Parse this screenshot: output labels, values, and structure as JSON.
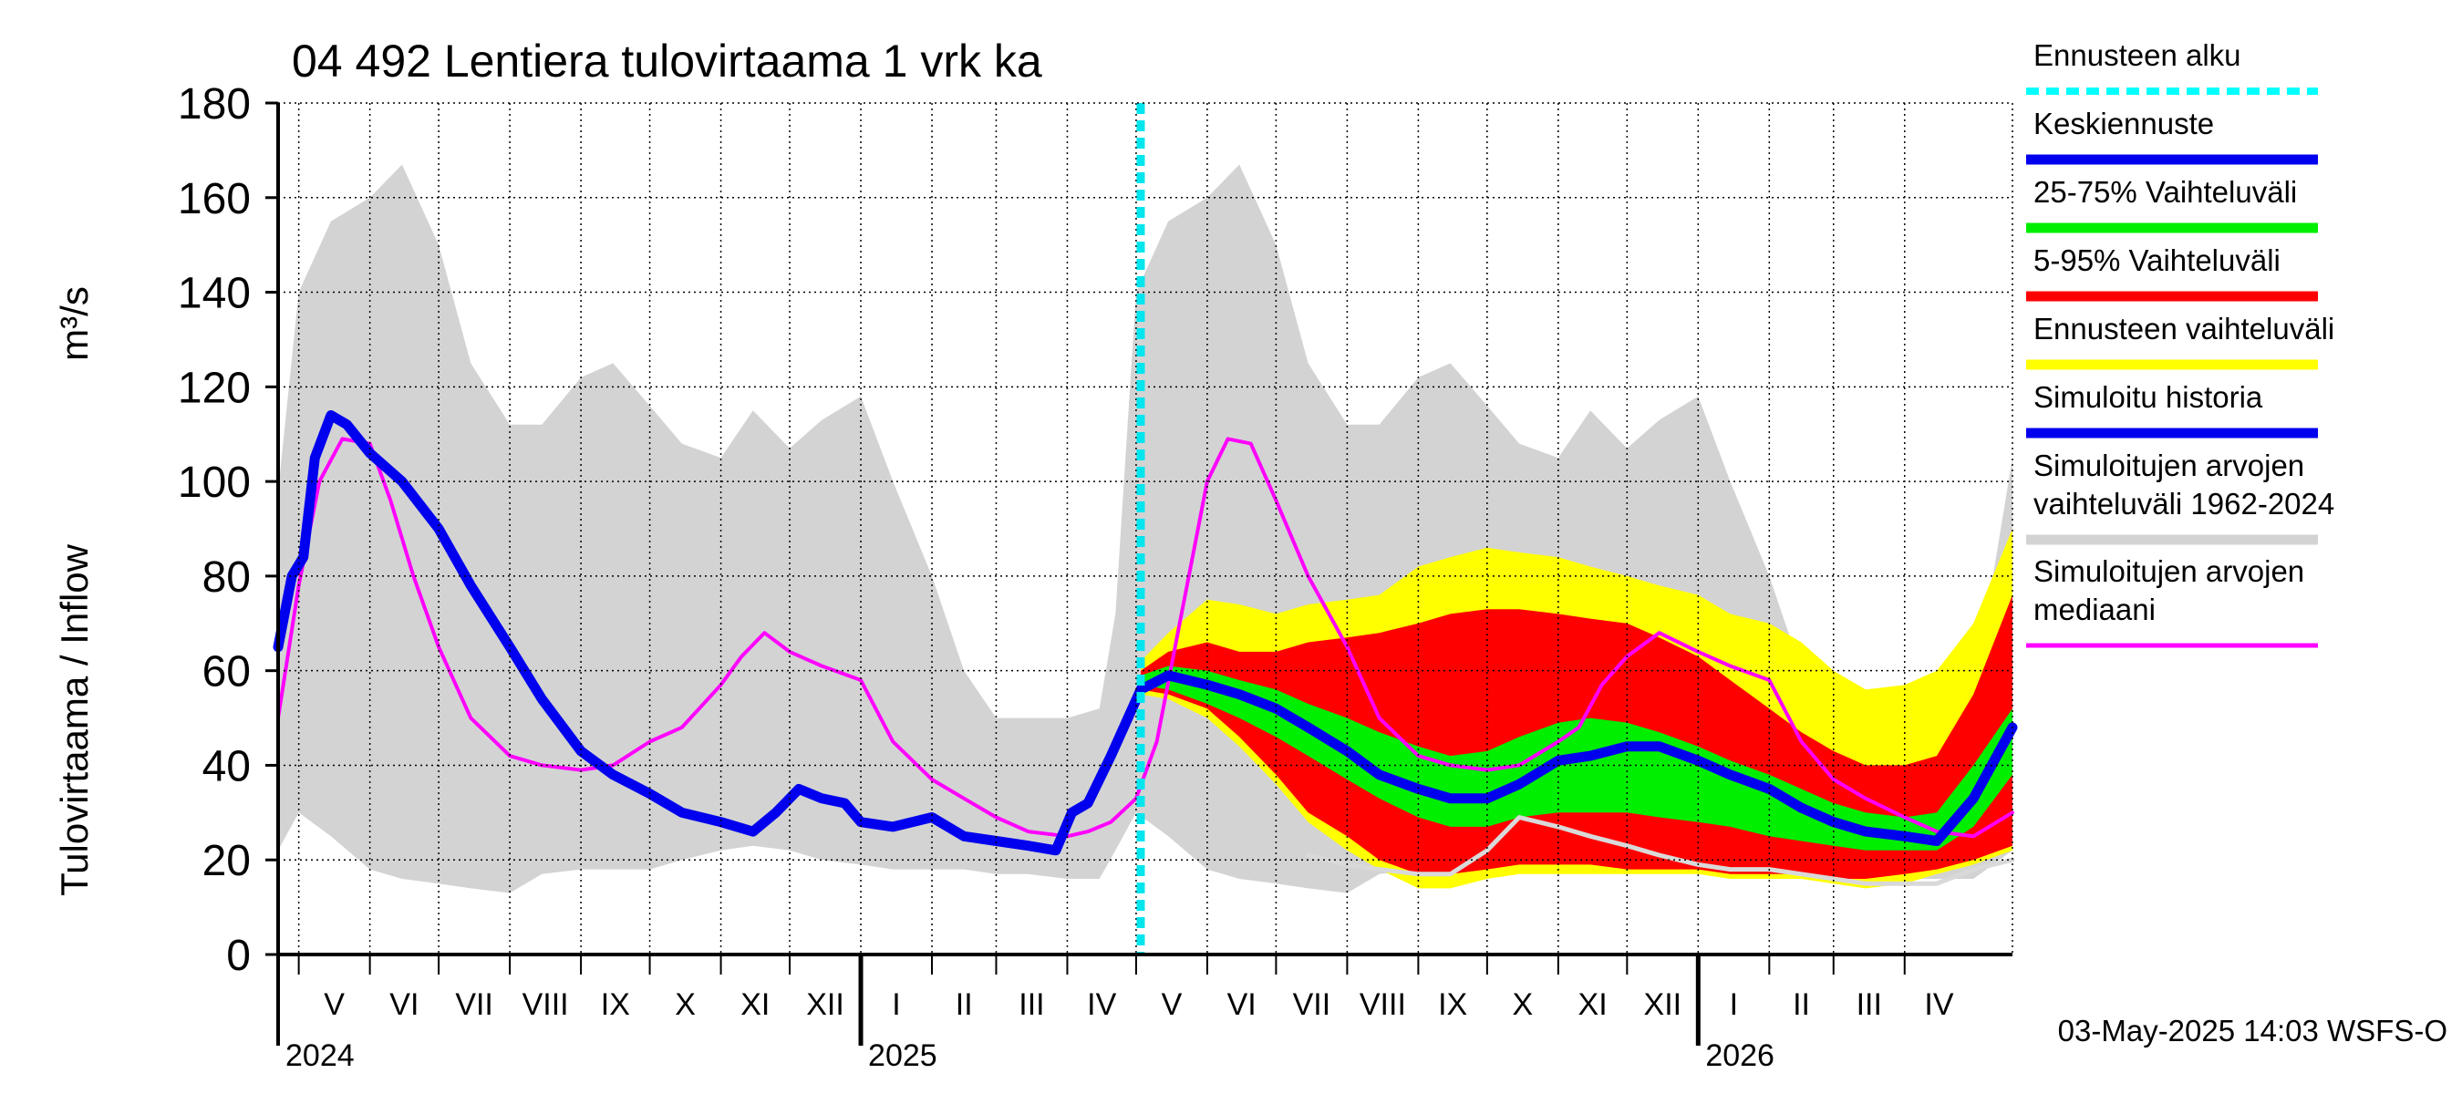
{
  "chart_data": {
    "type": "area",
    "title": "04 492 Lentiera tulovirtaama 1 vrk ka",
    "ylabel": "Tulovirtaama / Inflow",
    "yunit": "m³/s",
    "ylim": [
      0,
      180
    ],
    "yticks": [
      0,
      20,
      40,
      60,
      80,
      100,
      120,
      140,
      160,
      180
    ],
    "grid": true,
    "legend_position": "right",
    "xlim": [
      "2024-04-22",
      "2026-05-18"
    ],
    "forecast_start": "2025-05-03",
    "months": [
      {
        "label": "V",
        "start": "2024-05-01",
        "end": "2024-06-01"
      },
      {
        "label": "VI",
        "start": "2024-06-01",
        "end": "2024-07-01"
      },
      {
        "label": "VII",
        "start": "2024-07-01",
        "end": "2024-08-01"
      },
      {
        "label": "VIII",
        "start": "2024-08-01",
        "end": "2024-09-01"
      },
      {
        "label": "IX",
        "start": "2024-09-01",
        "end": "2024-10-01"
      },
      {
        "label": "X",
        "start": "2024-10-01",
        "end": "2024-11-01"
      },
      {
        "label": "XI",
        "start": "2024-11-01",
        "end": "2024-12-01"
      },
      {
        "label": "XII",
        "start": "2024-12-01",
        "end": "2025-01-01"
      },
      {
        "label": "I",
        "start": "2025-01-01",
        "end": "2025-02-01"
      },
      {
        "label": "II",
        "start": "2025-02-01",
        "end": "2025-03-01"
      },
      {
        "label": "III",
        "start": "2025-03-01",
        "end": "2025-04-01"
      },
      {
        "label": "IV",
        "start": "2025-04-01",
        "end": "2025-05-01"
      },
      {
        "label": "V",
        "start": "2025-05-01",
        "end": "2025-06-01"
      },
      {
        "label": "VI",
        "start": "2025-06-01",
        "end": "2025-07-01"
      },
      {
        "label": "VII",
        "start": "2025-07-01",
        "end": "2025-08-01"
      },
      {
        "label": "VIII",
        "start": "2025-08-01",
        "end": "2025-09-01"
      },
      {
        "label": "IX",
        "start": "2025-09-01",
        "end": "2025-10-01"
      },
      {
        "label": "X",
        "start": "2025-10-01",
        "end": "2025-11-01"
      },
      {
        "label": "XI",
        "start": "2025-11-01",
        "end": "2025-12-01"
      },
      {
        "label": "XII",
        "start": "2025-12-01",
        "end": "2026-01-01"
      },
      {
        "label": "I",
        "start": "2026-01-01",
        "end": "2026-02-01"
      },
      {
        "label": "II",
        "start": "2026-02-01",
        "end": "2026-03-01"
      },
      {
        "label": "III",
        "start": "2026-03-01",
        "end": "2026-04-01"
      },
      {
        "label": "IV",
        "start": "2026-04-01",
        "end": "2026-05-01"
      }
    ],
    "years": [
      {
        "label": "2024",
        "date": "2024-04-22"
      },
      {
        "label": "2025",
        "date": "2025-01-01"
      },
      {
        "label": "2026",
        "date": "2026-01-01"
      }
    ],
    "series": [
      {
        "name": "Simuloitujen arvojen vaihteluväli 1962-2024",
        "kind": "band",
        "color": "#d3d3d3",
        "x": [
          "2024-04-22",
          "2024-05-01",
          "2024-05-15",
          "2024-06-01",
          "2024-06-15",
          "2024-07-01",
          "2024-07-15",
          "2024-08-01",
          "2024-08-15",
          "2024-09-01",
          "2024-09-15",
          "2024-10-01",
          "2024-10-15",
          "2024-11-01",
          "2024-11-15",
          "2024-12-01",
          "2024-12-15",
          "2025-01-01",
          "2025-01-15",
          "2025-02-01",
          "2025-02-15",
          "2025-03-01",
          "2025-03-15",
          "2025-04-01",
          "2025-04-15",
          "2025-04-22",
          "2025-05-01",
          "2025-05-15",
          "2025-06-01",
          "2025-06-15",
          "2025-07-01",
          "2025-07-15",
          "2025-08-01",
          "2025-08-15",
          "2025-09-01",
          "2025-09-15",
          "2025-10-01",
          "2025-10-15",
          "2025-11-01",
          "2025-11-15",
          "2025-12-01",
          "2025-12-15",
          "2026-01-01",
          "2026-01-15",
          "2026-02-01",
          "2026-02-15",
          "2026-03-01",
          "2026-03-15",
          "2026-04-01",
          "2026-04-15",
          "2026-05-01",
          "2026-05-18"
        ],
        "lower": [
          22,
          30,
          25,
          18,
          16,
          15,
          14,
          13,
          17,
          18,
          18,
          18,
          20,
          22,
          23,
          22,
          20,
          19,
          18,
          18,
          18,
          17,
          17,
          16,
          16,
          22,
          30,
          25,
          18,
          16,
          15,
          14,
          13,
          17,
          18,
          18,
          18,
          20,
          22,
          23,
          22,
          20,
          19,
          18,
          18,
          18,
          17,
          17,
          16,
          16,
          16,
          22
        ],
        "upper": [
          98,
          140,
          155,
          160,
          167,
          150,
          125,
          112,
          112,
          122,
          125,
          116,
          108,
          105,
          115,
          107,
          113,
          118,
          100,
          80,
          60,
          50,
          50,
          50,
          52,
          72,
          140,
          155,
          160,
          167,
          150,
          125,
          112,
          112,
          122,
          125,
          116,
          108,
          105,
          115,
          107,
          113,
          118,
          100,
          80,
          60,
          50,
          50,
          50,
          52,
          55,
          105
        ]
      },
      {
        "name": "Ennusteen vaihteluväli",
        "kind": "band",
        "color": "#ffff00",
        "x": [
          "2025-05-03",
          "2025-05-15",
          "2025-06-01",
          "2025-06-15",
          "2025-07-01",
          "2025-07-15",
          "2025-08-01",
          "2025-08-15",
          "2025-09-01",
          "2025-09-15",
          "2025-10-01",
          "2025-10-15",
          "2025-11-01",
          "2025-11-15",
          "2025-12-01",
          "2025-12-15",
          "2026-01-01",
          "2026-01-15",
          "2026-02-01",
          "2026-02-15",
          "2026-03-01",
          "2026-03-15",
          "2026-04-01",
          "2026-04-15",
          "2026-05-01",
          "2026-05-18"
        ],
        "lower": [
          55,
          54,
          50,
          44,
          36,
          28,
          22,
          18,
          14,
          14,
          16,
          17,
          17,
          17,
          17,
          17,
          17,
          16,
          16,
          16,
          15,
          14,
          15,
          17,
          19,
          22
        ],
        "upper": [
          62,
          68,
          75,
          74,
          72,
          74,
          75,
          76,
          82,
          84,
          86,
          85,
          84,
          82,
          80,
          78,
          76,
          72,
          70,
          66,
          60,
          56,
          57,
          60,
          70,
          90
        ]
      },
      {
        "name": "5-95% Vaihteluväli",
        "kind": "band",
        "color": "#ff0000",
        "x": [
          "2025-05-03",
          "2025-05-15",
          "2025-06-01",
          "2025-06-15",
          "2025-07-01",
          "2025-07-15",
          "2025-08-01",
          "2025-08-15",
          "2025-09-01",
          "2025-09-15",
          "2025-10-01",
          "2025-10-15",
          "2025-11-01",
          "2025-11-15",
          "2025-12-01",
          "2025-12-15",
          "2026-01-01",
          "2026-01-15",
          "2026-02-01",
          "2026-02-15",
          "2026-03-01",
          "2026-03-15",
          "2026-04-01",
          "2026-04-15",
          "2026-05-01",
          "2026-05-18"
        ],
        "lower": [
          56,
          55,
          52,
          46,
          38,
          30,
          25,
          20,
          17,
          17,
          18,
          19,
          19,
          19,
          18,
          18,
          18,
          17,
          17,
          17,
          16,
          16,
          17,
          18,
          20,
          23
        ],
        "upper": [
          60,
          64,
          66,
          64,
          64,
          66,
          67,
          68,
          70,
          72,
          73,
          73,
          72,
          71,
          70,
          67,
          63,
          58,
          52,
          47,
          43,
          40,
          40,
          42,
          55,
          76
        ]
      },
      {
        "name": "25-75% Vaihteluväli",
        "kind": "band",
        "color": "#00ee00",
        "x": [
          "2025-05-03",
          "2025-05-15",
          "2025-06-01",
          "2025-06-15",
          "2025-07-01",
          "2025-07-15",
          "2025-08-01",
          "2025-08-15",
          "2025-09-01",
          "2025-09-15",
          "2025-10-01",
          "2025-10-15",
          "2025-11-01",
          "2025-11-15",
          "2025-12-01",
          "2025-12-15",
          "2026-01-01",
          "2026-01-15",
          "2026-02-01",
          "2026-02-15",
          "2026-03-01",
          "2026-03-15",
          "2026-04-01",
          "2026-04-15",
          "2026-05-01",
          "2026-05-18"
        ],
        "lower": [
          57,
          56,
          53,
          50,
          46,
          42,
          37,
          33,
          29,
          27,
          27,
          29,
          30,
          30,
          30,
          29,
          28,
          27,
          25,
          24,
          23,
          22,
          22,
          22,
          27,
          38
        ],
        "upper": [
          59,
          61,
          60,
          58,
          56,
          53,
          50,
          47,
          44,
          42,
          43,
          46,
          49,
          50,
          49,
          47,
          44,
          41,
          38,
          35,
          32,
          30,
          29,
          30,
          40,
          52
        ]
      },
      {
        "name": "Simuloitujen arvojen mediaani",
        "kind": "line",
        "color": "#ff00ff",
        "x": [
          "2024-04-22",
          "2024-05-01",
          "2024-05-10",
          "2024-05-20",
          "2024-06-01",
          "2024-06-10",
          "2024-06-20",
          "2024-07-01",
          "2024-07-15",
          "2024-08-01",
          "2024-08-15",
          "2024-09-01",
          "2024-09-15",
          "2024-10-01",
          "2024-10-15",
          "2024-11-01",
          "2024-11-10",
          "2024-11-20",
          "2024-12-01",
          "2024-12-15",
          "2025-01-01",
          "2025-01-15",
          "2025-02-01",
          "2025-02-15",
          "2025-03-01",
          "2025-03-15",
          "2025-04-01",
          "2025-04-10",
          "2025-04-20",
          "2025-05-01",
          "2025-05-10",
          "2025-05-20",
          "2025-06-01",
          "2025-06-10",
          "2025-06-20",
          "2025-07-01",
          "2025-07-15",
          "2025-08-01",
          "2025-08-15",
          "2025-09-01",
          "2025-09-15",
          "2025-10-01",
          "2025-10-15",
          "2025-11-01",
          "2025-11-10",
          "2025-11-20",
          "2025-12-01",
          "2025-12-15",
          "2026-01-01",
          "2026-01-15",
          "2026-02-01",
          "2026-02-15",
          "2026-03-01",
          "2026-03-15",
          "2026-04-01",
          "2026-04-15",
          "2026-05-01",
          "2026-05-18"
        ],
        "values": [
          50,
          78,
          100,
          109,
          108,
          96,
          80,
          65,
          50,
          42,
          40,
          39,
          40,
          45,
          48,
          57,
          63,
          68,
          64,
          61,
          58,
          45,
          37,
          33,
          29,
          26,
          25,
          26,
          28,
          33,
          45,
          70,
          100,
          109,
          108,
          96,
          80,
          65,
          50,
          42,
          40,
          39,
          40,
          45,
          48,
          57,
          63,
          68,
          64,
          61,
          58,
          45,
          37,
          33,
          29,
          26,
          25,
          30
        ]
      },
      {
        "name": "Simuloitu historia",
        "kind": "line",
        "color": "#0000ee",
        "x": [
          "2024-04-22",
          "2024-04-28",
          "2024-05-03",
          "2024-05-08",
          "2024-05-15",
          "2024-05-22",
          "2024-06-01",
          "2024-06-15",
          "2024-07-01",
          "2024-07-15",
          "2024-08-01",
          "2024-08-15",
          "2024-09-01",
          "2024-09-15",
          "2024-10-01",
          "2024-10-15",
          "2024-11-01",
          "2024-11-15",
          "2024-11-25",
          "2024-12-05",
          "2024-12-15",
          "2024-12-25",
          "2025-01-01",
          "2025-01-15",
          "2025-02-01",
          "2025-02-15",
          "2025-03-01",
          "2025-03-15",
          "2025-03-27",
          "2025-04-03",
          "2025-04-10",
          "2025-04-20",
          "2025-05-03"
        ],
        "values": [
          65,
          80,
          84,
          105,
          114,
          112,
          106,
          100,
          90,
          78,
          65,
          54,
          43,
          38,
          34,
          30,
          28,
          26,
          30,
          35,
          33,
          32,
          28,
          27,
          29,
          25,
          24,
          23,
          22,
          30,
          32,
          42,
          56
        ]
      },
      {
        "name": "Keskiennuste",
        "kind": "line",
        "color": "#0000ee",
        "x": [
          "2025-05-03",
          "2025-05-15",
          "2025-06-01",
          "2025-06-15",
          "2025-07-01",
          "2025-07-15",
          "2025-08-01",
          "2025-08-15",
          "2025-09-01",
          "2025-09-15",
          "2025-10-01",
          "2025-10-15",
          "2025-11-01",
          "2025-11-15",
          "2025-12-01",
          "2025-12-15",
          "2026-01-01",
          "2026-01-15",
          "2026-02-01",
          "2026-02-15",
          "2026-03-01",
          "2026-03-15",
          "2026-04-01",
          "2026-04-15",
          "2026-05-01",
          "2026-05-18"
        ],
        "values": [
          56,
          59,
          57,
          55,
          52,
          48,
          43,
          38,
          35,
          33,
          33,
          36,
          41,
          42,
          44,
          44,
          41,
          38,
          35,
          31,
          28,
          26,
          25,
          24,
          33,
          48
        ]
      },
      {
        "name": "Simulated lower trace",
        "kind": "line",
        "color": "#d9d9d9",
        "x": [
          "2025-07-15",
          "2025-08-01",
          "2025-08-15",
          "2025-09-01",
          "2025-09-15",
          "2025-10-01",
          "2025-10-15",
          "2025-11-01",
          "2025-11-15",
          "2025-12-01",
          "2025-12-15",
          "2026-01-01",
          "2026-01-15",
          "2026-02-01",
          "2026-02-15",
          "2026-03-01",
          "2026-03-15",
          "2026-04-01",
          "2026-04-15",
          "2026-05-01",
          "2026-05-18"
        ],
        "values": [
          21,
          19,
          18,
          17,
          17,
          22,
          29,
          27,
          25,
          23,
          21,
          19,
          18,
          18,
          17,
          16,
          15,
          15,
          15,
          18,
          20
        ]
      }
    ]
  },
  "legend": [
    {
      "label": "Ennusteen alku",
      "color": "#00ffff",
      "style": "dashed"
    },
    {
      "label": "Keskiennuste",
      "color": "#0000ee",
      "style": "solid"
    },
    {
      "label": "25-75% Vaihteluväli",
      "color": "#00ee00",
      "style": "solid"
    },
    {
      "label": "5-95% Vaihteluväli",
      "color": "#ff0000",
      "style": "solid"
    },
    {
      "label": "Ennusteen vaihteluväli",
      "color": "#ffff00",
      "style": "solid"
    },
    {
      "label": "Simuloitu historia",
      "color": "#0000ee",
      "style": "solid"
    },
    {
      "label": "Simuloitujen arvojen vaihteluväli 1962-2024",
      "color": "#d3d3d3",
      "style": "solid"
    },
    {
      "label": "Simuloitujen arvojen mediaani",
      "color": "#ff00ff",
      "style": "solid"
    }
  ],
  "footer": "03-May-2025 14:03 WSFS-O"
}
